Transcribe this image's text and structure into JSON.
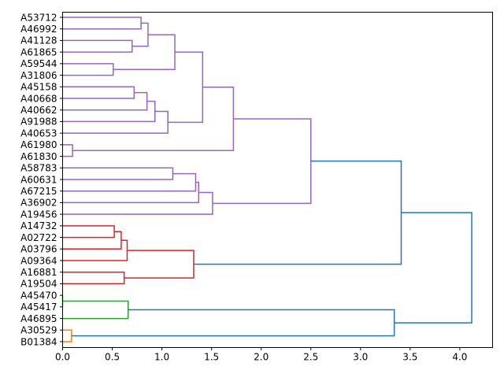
{
  "chart_data": {
    "type": "dendrogram",
    "title": "",
    "xlabel": "",
    "ylabel": "",
    "xlim": [
      0,
      4.33
    ],
    "xticks": [
      "0.0",
      "0.5",
      "1.0",
      "1.5",
      "2.0",
      "2.5",
      "3.0",
      "3.5",
      "4.0"
    ],
    "xtick_values": [
      0,
      0.5,
      1.0,
      1.5,
      2.0,
      2.5,
      3.0,
      3.5,
      4.0
    ],
    "leaves": [
      "A53712",
      "A46992",
      "A41128",
      "A61865",
      "A59544",
      "A31806",
      "A45158",
      "A40668",
      "A40662",
      "A91988",
      "A40653",
      "A61980",
      "A61830",
      "A58783",
      "A60631",
      "A67215",
      "A36902",
      "A19456",
      "A14732",
      "A02722",
      "A03796",
      "A09364",
      "A16881",
      "A19504",
      "A45470",
      "A45417",
      "A46895",
      "A30529",
      "B01384"
    ],
    "colors": {
      "purple": "#9467bd",
      "red": "#d62728",
      "green": "#2ca02c",
      "orange": "#ff7f0e",
      "blue": "#1f77b4"
    },
    "merges": [
      {
        "id": "m0",
        "a": "A53712",
        "b": "A46992",
        "height": 0.79,
        "color": "purple"
      },
      {
        "id": "m1",
        "a": "A41128",
        "b": "A61865",
        "height": 0.7,
        "color": "purple"
      },
      {
        "id": "m2",
        "a": "m0",
        "b": "m1",
        "height": 0.86,
        "color": "purple"
      },
      {
        "id": "m3",
        "a": "A59544",
        "b": "A31806",
        "height": 0.51,
        "color": "purple"
      },
      {
        "id": "m4",
        "a": "m2",
        "b": "m3",
        "height": 1.13,
        "color": "purple"
      },
      {
        "id": "m5",
        "a": "A45158",
        "b": "A40668",
        "height": 0.72,
        "color": "purple"
      },
      {
        "id": "m6",
        "a": "m5",
        "b": "A40662",
        "height": 0.85,
        "color": "purple"
      },
      {
        "id": "m7",
        "a": "m6",
        "b": "A91988",
        "height": 0.93,
        "color": "purple"
      },
      {
        "id": "m8",
        "a": "m7",
        "b": "A40653",
        "height": 1.06,
        "color": "purple"
      },
      {
        "id": "m9",
        "a": "m4",
        "b": "m8",
        "height": 1.41,
        "color": "purple"
      },
      {
        "id": "m10",
        "a": "A61980",
        "b": "A61830",
        "height": 0.1,
        "color": "purple"
      },
      {
        "id": "m11",
        "a": "m9",
        "b": "m10",
        "height": 1.72,
        "color": "purple"
      },
      {
        "id": "m12",
        "a": "A58783",
        "b": "A60631",
        "height": 1.11,
        "color": "purple"
      },
      {
        "id": "m13",
        "a": "m12",
        "b": "A67215",
        "height": 1.34,
        "color": "purple"
      },
      {
        "id": "m14",
        "a": "m13",
        "b": "A36902",
        "height": 1.37,
        "color": "purple"
      },
      {
        "id": "m15",
        "a": "m14",
        "b": "A19456",
        "height": 1.51,
        "color": "purple"
      },
      {
        "id": "m16",
        "a": "m11",
        "b": "m15",
        "height": 2.5,
        "color": "purple"
      },
      {
        "id": "m17",
        "a": "A14732",
        "b": "A02722",
        "height": 0.52,
        "color": "red"
      },
      {
        "id": "m18",
        "a": "m17",
        "b": "A03796",
        "height": 0.59,
        "color": "red"
      },
      {
        "id": "m19",
        "a": "m18",
        "b": "A09364",
        "height": 0.65,
        "color": "red"
      },
      {
        "id": "m20",
        "a": "A16881",
        "b": "A19504",
        "height": 0.62,
        "color": "red"
      },
      {
        "id": "m21",
        "a": "m19",
        "b": "m20",
        "height": 1.32,
        "color": "red"
      },
      {
        "id": "m22",
        "a": "m16",
        "b": "m21",
        "height": 3.41,
        "color": "blue"
      },
      {
        "id": "m23",
        "a": "A45470",
        "b": "A45417",
        "height": 0.0,
        "color": "green"
      },
      {
        "id": "m24",
        "a": "m23",
        "b": "A46895",
        "height": 0.66,
        "color": "green"
      },
      {
        "id": "m25",
        "a": "A30529",
        "b": "B01384",
        "height": 0.09,
        "color": "orange"
      },
      {
        "id": "m26",
        "a": "m24",
        "b": "m25",
        "height": 3.34,
        "color": "blue"
      },
      {
        "id": "m27",
        "a": "m22",
        "b": "m26",
        "height": 4.12,
        "color": "blue"
      }
    ]
  }
}
